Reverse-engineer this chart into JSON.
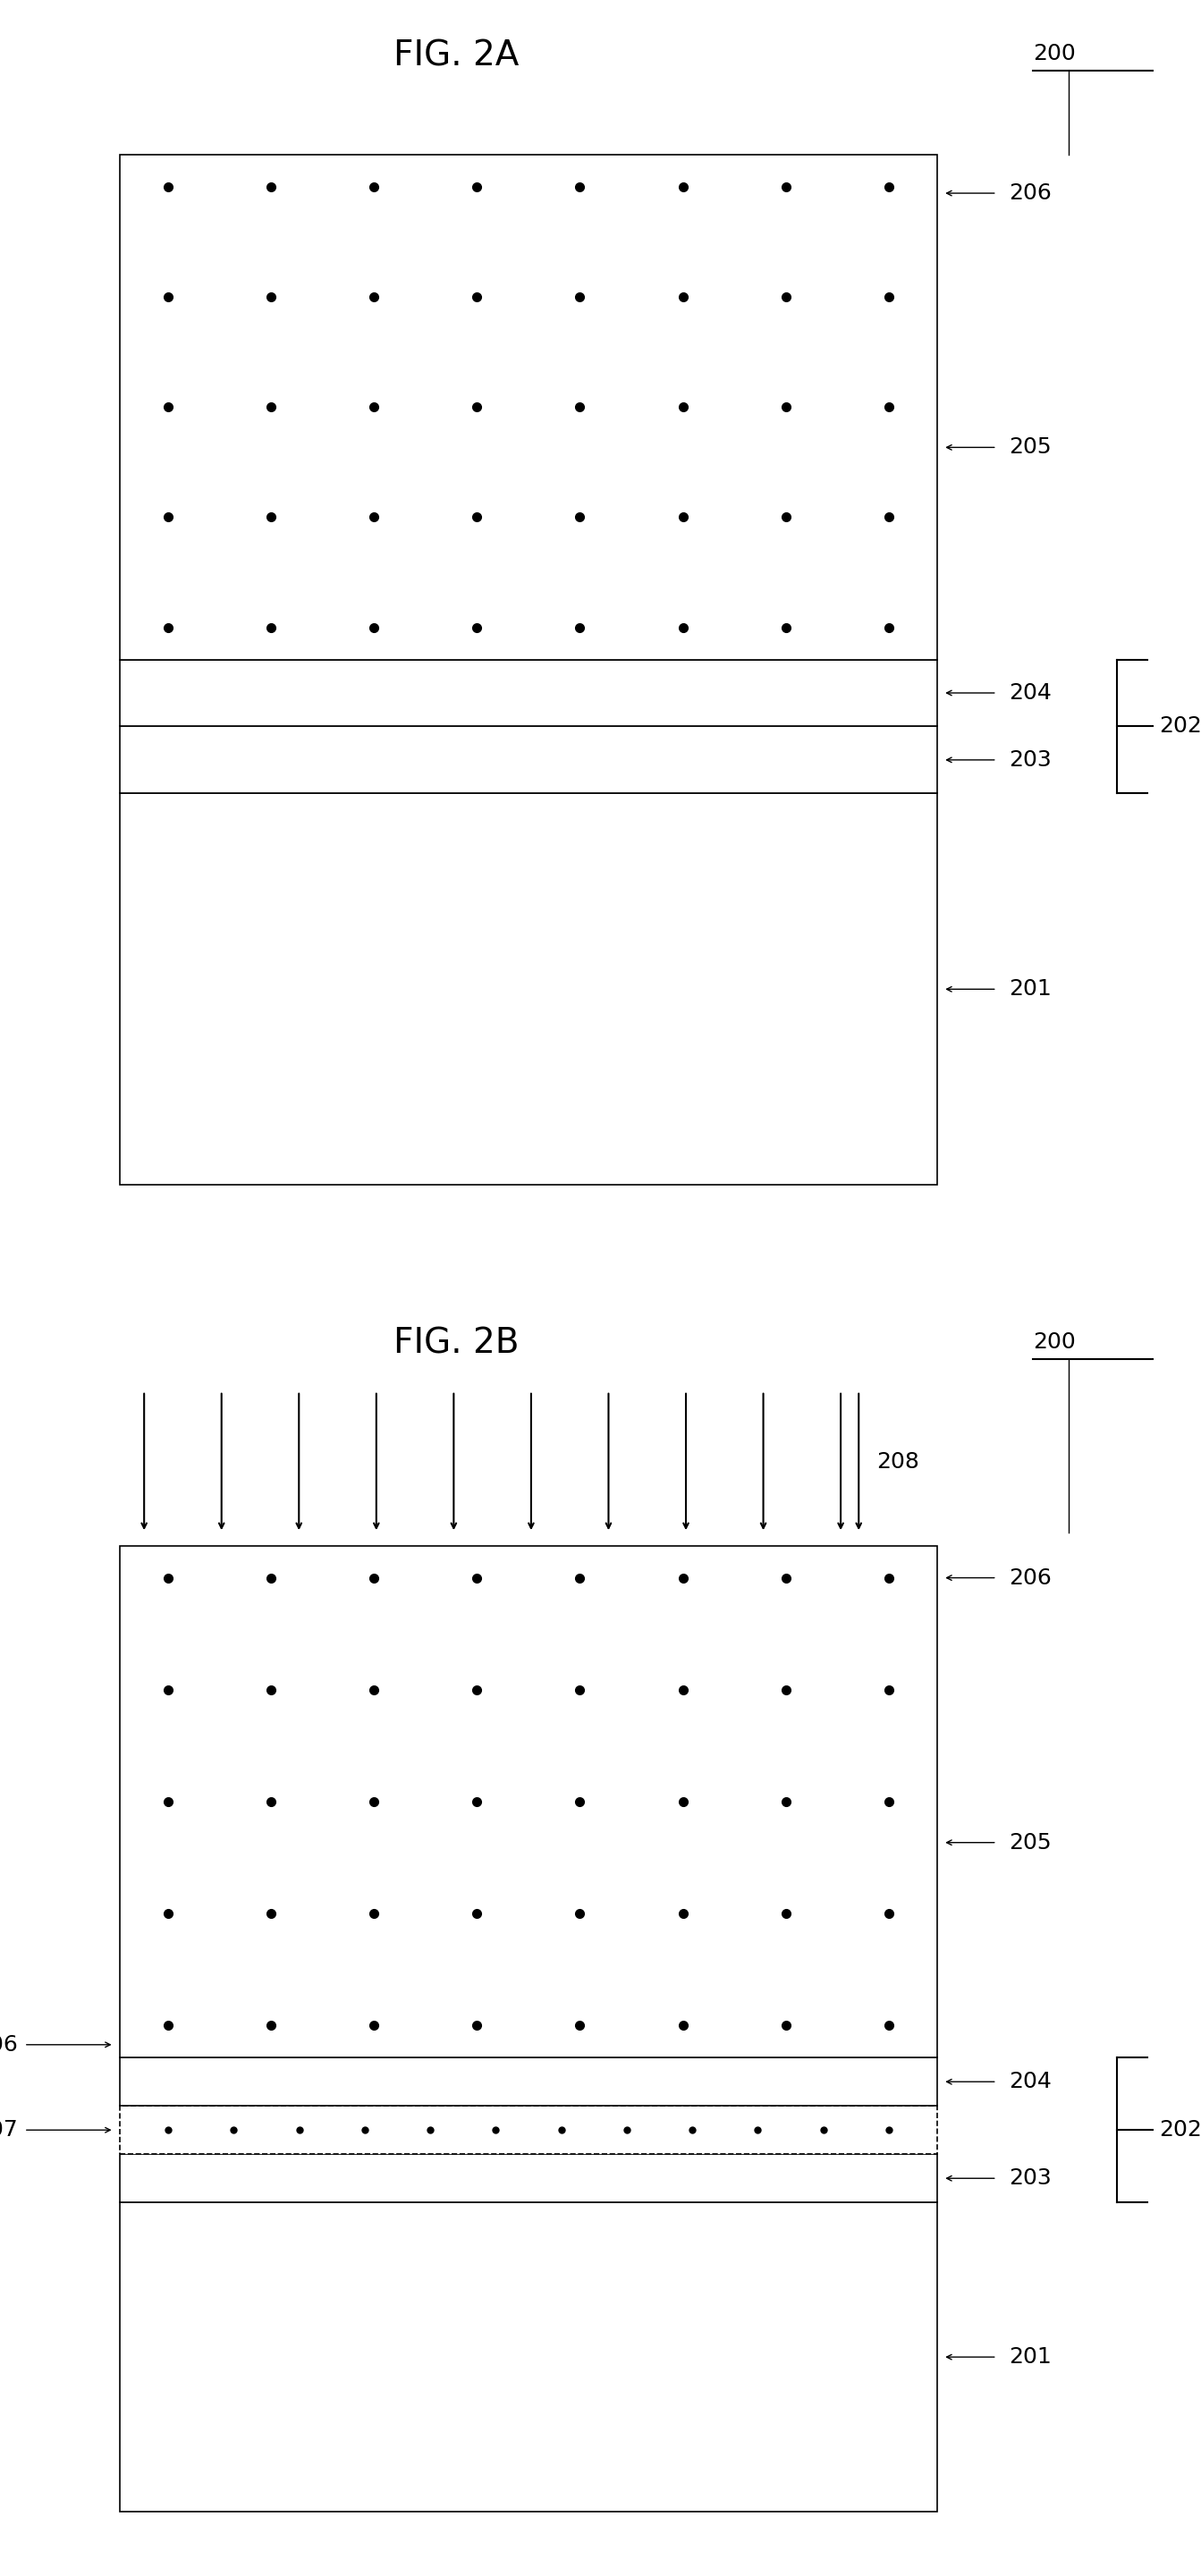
{
  "fig_width": 13.43,
  "fig_height": 28.81,
  "bg_color": "#ffffff",
  "title_2a": "FIG. 2A",
  "title_2b": "FIG. 2B",
  "title_fontsize": 28,
  "label_fontsize": 18
}
